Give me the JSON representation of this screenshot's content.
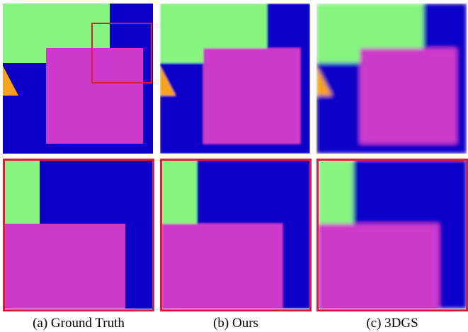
{
  "figure": {
    "captions": [
      "(a) Ground Truth",
      "(b) Ours",
      "(c) 3DGS"
    ]
  }
}
